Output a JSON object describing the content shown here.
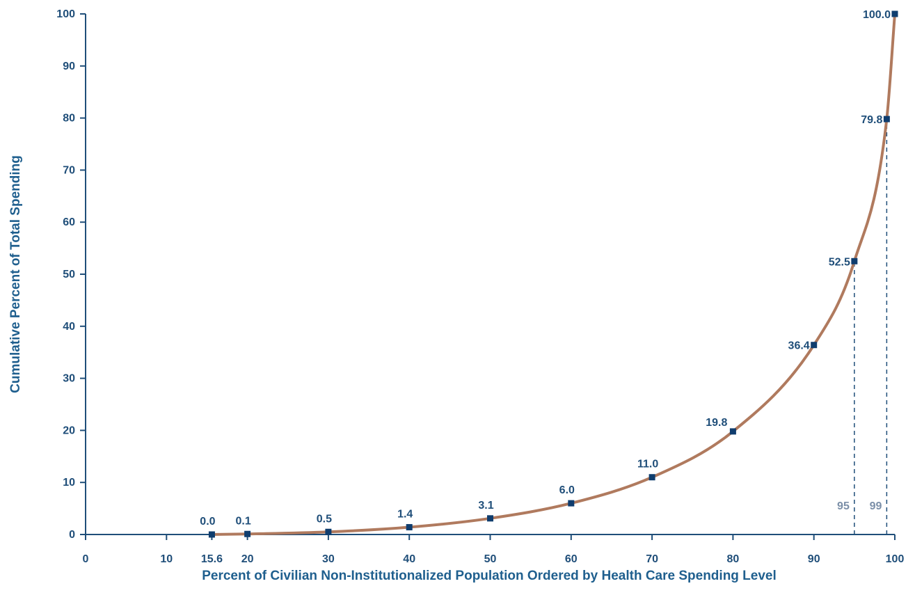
{
  "chart_data": {
    "type": "line",
    "title": "",
    "xlabel": "Percent of Civilian Non-Institutionalized Population Ordered by Health Care Spending Level",
    "ylabel": "Cumulative Percent of Total Spending",
    "xlim": [
      0,
      100
    ],
    "ylim": [
      0,
      100
    ],
    "x_ticks": [
      "0",
      "10",
      "15.6",
      "20",
      "30",
      "40",
      "50",
      "60",
      "70",
      "80",
      "90",
      "100"
    ],
    "y_ticks": [
      "0",
      "10",
      "20",
      "30",
      "40",
      "50",
      "60",
      "70",
      "80",
      "90",
      "100"
    ],
    "grid": false,
    "points": [
      {
        "x": 15.6,
        "y": 0.0,
        "label": "0.0"
      },
      {
        "x": 20,
        "y": 0.1,
        "label": "0.1"
      },
      {
        "x": 30,
        "y": 0.5,
        "label": "0.5"
      },
      {
        "x": 40,
        "y": 1.4,
        "label": "1.4"
      },
      {
        "x": 50,
        "y": 3.1,
        "label": "3.1"
      },
      {
        "x": 60,
        "y": 6.0,
        "label": "6.0"
      },
      {
        "x": 70,
        "y": 11.0,
        "label": "11.0"
      },
      {
        "x": 80,
        "y": 19.8,
        "label": "19.8"
      },
      {
        "x": 90,
        "y": 36.4,
        "label": "36.4"
      },
      {
        "x": 95,
        "y": 52.5,
        "label": "52.5"
      },
      {
        "x": 99,
        "y": 79.8,
        "label": "79.8"
      },
      {
        "x": 100,
        "y": 100.0,
        "label": "100.0"
      }
    ],
    "reference_lines": [
      {
        "x": 95,
        "label": "95"
      },
      {
        "x": 99,
        "label": "99"
      }
    ],
    "colors": {
      "curve": "#b07a5e",
      "marker": "#0f3d6e",
      "axis": "#1f4e79",
      "text": "#1f4e79",
      "axis_title": "#1f5f8e",
      "reference_label": "#7b8fa8"
    }
  }
}
